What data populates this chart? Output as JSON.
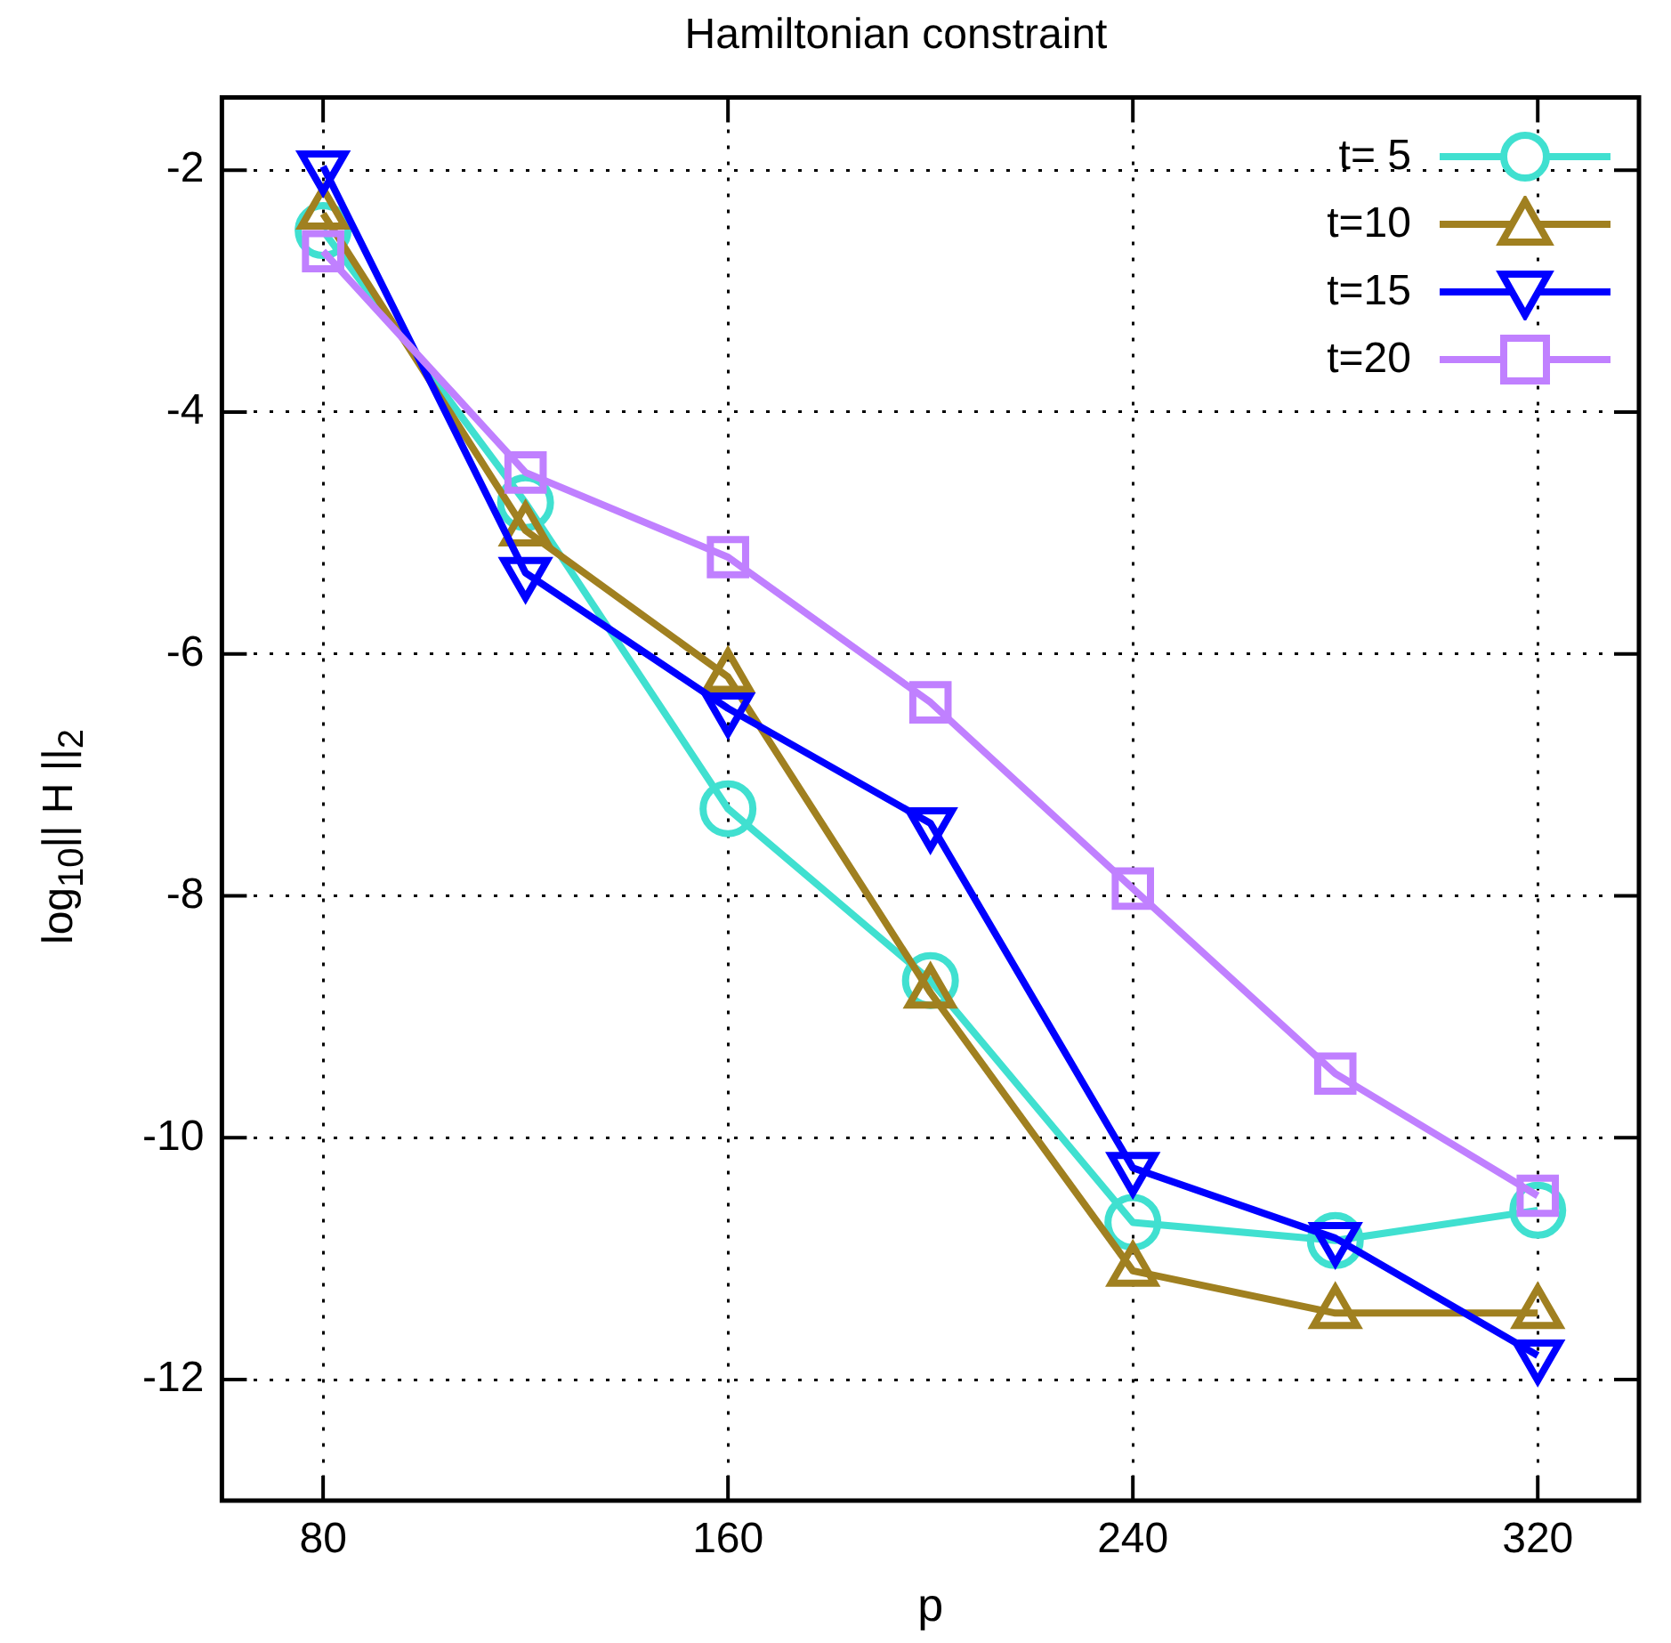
{
  "chart_data": {
    "type": "line",
    "title": "Hamiltonian constraint",
    "xlabel": "p",
    "ylabel": "log$_{10}$|| H ||$_{2}$",
    "x": [
      80,
      120,
      160,
      200,
      240,
      280,
      320
    ],
    "series": [
      {
        "name": "t= 5",
        "color": "#40e0d0",
        "marker": "circle",
        "values": [
          -2.5,
          -4.75,
          -7.28,
          -8.7,
          -10.7,
          -10.85,
          -10.6
        ]
      },
      {
        "name": "t=10",
        "color": "#a08020",
        "marker": "triangle",
        "values": [
          -2.36,
          -4.98,
          -6.19,
          -8.8,
          -11.1,
          -11.45,
          -11.45
        ]
      },
      {
        "name": "t=15",
        "color": "#0000ff",
        "marker": "triangle-down",
        "values": [
          -1.97,
          -5.33,
          -6.45,
          -7.4,
          -10.25,
          -10.83,
          -11.8
        ]
      },
      {
        "name": "t=20",
        "color": "#c080ff",
        "marker": "square",
        "values": [
          -2.67,
          -4.5,
          -5.2,
          -6.4,
          -7.94,
          -9.47,
          -10.48
        ]
      }
    ],
    "xlim": [
      60,
      340
    ],
    "xticks": [
      80,
      160,
      240,
      320
    ],
    "ylim": [
      -13,
      -1.4
    ],
    "yticks": [
      -12,
      -10,
      -8,
      -6,
      -4,
      -2
    ],
    "grid": true,
    "legend": "top right",
    "line_style": "solid"
  }
}
